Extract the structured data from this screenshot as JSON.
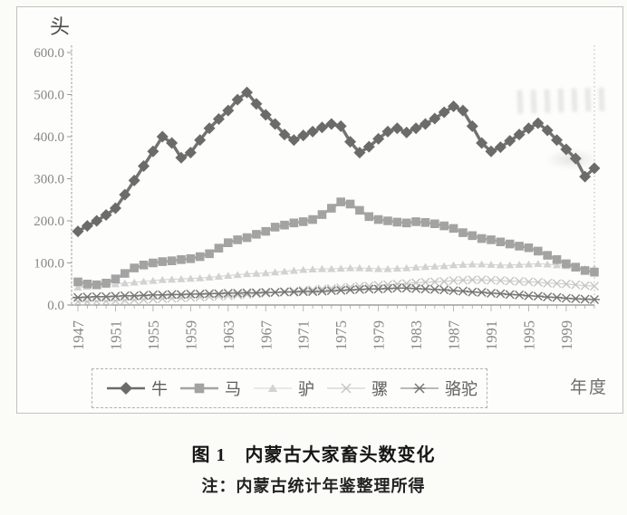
{
  "figure": {
    "caption": "图 1　内蒙古大家畜头数变化",
    "note": "注：内蒙古统计年鉴整理所得"
  },
  "chart_data": {
    "type": "line",
    "title": "内蒙古大家畜头数变化",
    "xlabel": "年度",
    "ylabel": "头",
    "ylim": [
      0,
      600
    ],
    "grid": false,
    "legend_position": "bottom",
    "x_start_year": 1947,
    "x_end_year": 2002,
    "x_tick_labels": [
      "1947",
      "1951",
      "1955",
      "1959",
      "1963",
      "1967",
      "1971",
      "1975",
      "1979",
      "1983",
      "1987",
      "1991",
      "1995",
      "1999"
    ],
    "y_tick_labels": [
      "0.0",
      "100.0",
      "200.0",
      "300.0",
      "400.0",
      "500.0",
      "600.0"
    ],
    "series": [
      {
        "id": "cattle",
        "name": "牛",
        "marker": "diamond",
        "color": "#6b6b6b",
        "values": [
          175,
          188,
          200,
          214,
          230,
          262,
          296,
          330,
          365,
          400,
          385,
          350,
          362,
          392,
          420,
          442,
          462,
          488,
          505,
          478,
          452,
          430,
          405,
          392,
          403,
          412,
          422,
          430,
          425,
          388,
          362,
          376,
          395,
          412,
          420,
          410,
          420,
          430,
          443,
          458,
          472,
          462,
          425,
          385,
          365,
          375,
          390,
          405,
          420,
          432,
          415,
          392,
          370,
          348,
          305,
          325
        ]
      },
      {
        "id": "horse",
        "name": "马",
        "marker": "square",
        "color": "#a3a3a3",
        "values": [
          55,
          50,
          48,
          52,
          62,
          75,
          88,
          95,
          100,
          103,
          105,
          108,
          110,
          115,
          122,
          135,
          148,
          155,
          160,
          168,
          175,
          185,
          190,
          195,
          198,
          203,
          215,
          230,
          245,
          240,
          225,
          210,
          203,
          200,
          197,
          195,
          198,
          196,
          193,
          188,
          182,
          172,
          165,
          158,
          155,
          150,
          145,
          140,
          136,
          128,
          118,
          108,
          98,
          90,
          82,
          78
        ]
      },
      {
        "id": "donkey",
        "name": "驴",
        "marker": "triangle",
        "color": "#d2d2d2",
        "values": [
          42,
          44,
          46,
          48,
          50,
          52,
          54,
          56,
          58,
          60,
          61,
          62,
          63,
          64,
          66,
          68,
          70,
          72,
          74,
          75,
          76,
          78,
          80,
          82,
          84,
          85,
          86,
          86,
          87,
          88,
          88,
          87,
          86,
          86,
          87,
          88,
          90,
          91,
          92,
          93,
          95,
          96,
          97,
          97,
          96,
          95,
          95,
          96,
          97,
          98,
          97,
          95,
          93,
          90,
          86,
          88
        ]
      },
      {
        "id": "mule",
        "name": "骡",
        "marker": "x",
        "color": "#c6c6c6",
        "values": [
          8,
          8,
          9,
          9,
          10,
          11,
          12,
          13,
          14,
          15,
          16,
          17,
          18,
          19,
          20,
          21,
          22,
          24,
          25,
          27,
          28,
          30,
          32,
          33,
          35,
          36,
          38,
          39,
          41,
          42,
          44,
          45,
          47,
          48,
          50,
          51,
          53,
          54,
          55,
          56,
          58,
          59,
          60,
          60,
          59,
          58,
          57,
          56,
          55,
          54,
          52,
          51,
          50,
          48,
          46,
          45
        ]
      },
      {
        "id": "camel",
        "name": "骆驼",
        "marker": "asterisk",
        "color": "#767676",
        "values": [
          18,
          19,
          20,
          20,
          21,
          22,
          22,
          23,
          24,
          24,
          25,
          25,
          26,
          26,
          27,
          27,
          28,
          28,
          29,
          29,
          30,
          30,
          31,
          31,
          32,
          32,
          33,
          34,
          35,
          36,
          37,
          38,
          38,
          39,
          40,
          40,
          39,
          38,
          37,
          36,
          34,
          33,
          31,
          30,
          28,
          27,
          25,
          24,
          22,
          21,
          19,
          18,
          16,
          15,
          14,
          13
        ]
      }
    ]
  }
}
